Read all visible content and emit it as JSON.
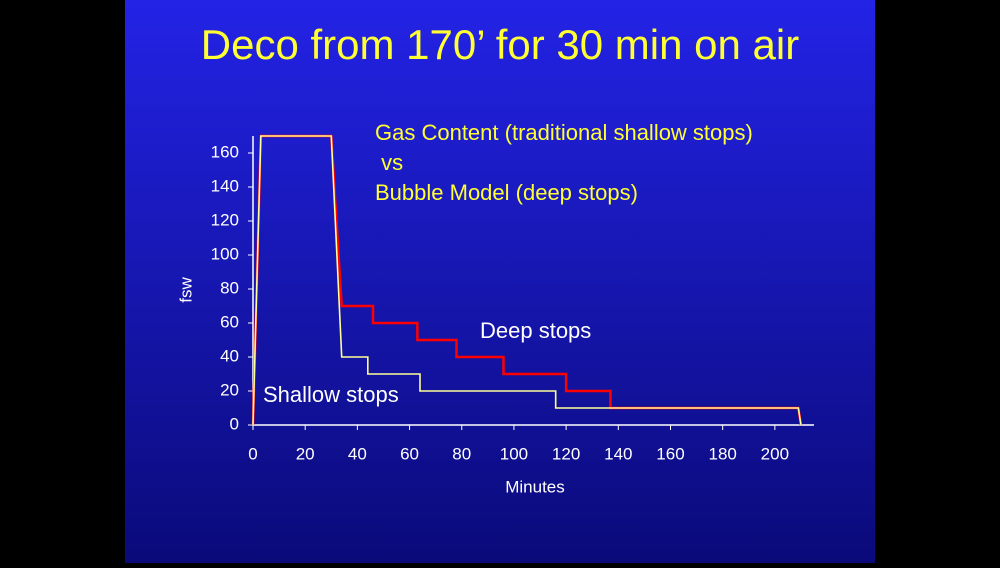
{
  "chart_data": {
    "type": "line",
    "title": "Deco from 170’ for 30 min on air",
    "annotations": [
      "Gas Content (traditional shallow stops)",
      " vs",
      "Bubble Model (deep stops)"
    ],
    "xlabel": "Minutes",
    "ylabel": "fsw",
    "xlim": [
      0,
      215
    ],
    "xticks": [
      0,
      20,
      40,
      60,
      80,
      100,
      120,
      140,
      160,
      180,
      200
    ],
    "ylim": [
      0,
      170
    ],
    "yticks": [
      0,
      20,
      40,
      60,
      80,
      100,
      120,
      140,
      160
    ],
    "series": [
      {
        "name": "Deep stops",
        "color": "#ff0000",
        "x": [
          0,
          3,
          30,
          34,
          46,
          46,
          63,
          63,
          78,
          78,
          96,
          96,
          120,
          120,
          137,
          137,
          209,
          210
        ],
        "values": [
          0,
          170,
          170,
          70,
          70,
          60,
          60,
          50,
          50,
          40,
          40,
          30,
          30,
          20,
          20,
          10,
          10,
          0
        ]
      },
      {
        "name": "Shallow stops",
        "color": "#ffff99",
        "x": [
          0,
          3,
          30,
          34,
          44,
          44,
          64,
          64,
          116,
          116,
          209,
          210
        ],
        "values": [
          0,
          170,
          170,
          40,
          40,
          30,
          30,
          20,
          20,
          10,
          10,
          0
        ]
      }
    ]
  }
}
